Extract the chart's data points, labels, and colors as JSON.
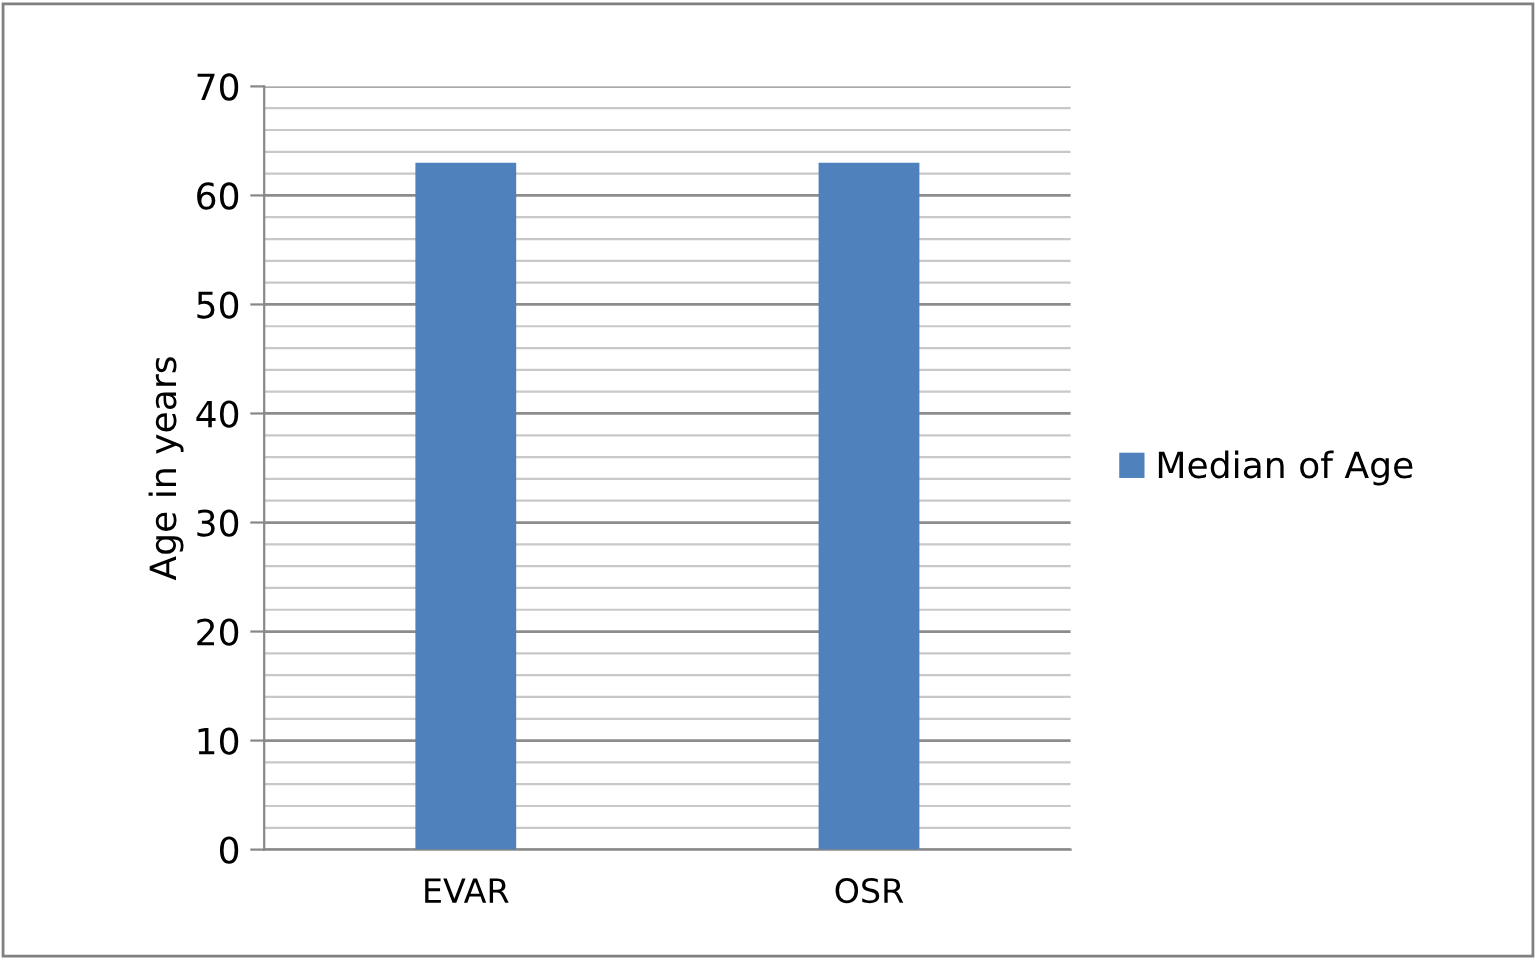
{
  "chart_data": {
    "type": "bar",
    "ylabel": "Age in years",
    "categories": [
      "EVAR",
      "OSR"
    ],
    "series": [
      {
        "name": "Median of Age",
        "color": "#4f81bd",
        "values": [
          63,
          63
        ]
      }
    ],
    "ylim": [
      0,
      70
    ],
    "yticks": [
      0,
      10,
      20,
      30,
      40,
      50,
      60,
      70
    ],
    "grid": "y",
    "legend": "right"
  }
}
